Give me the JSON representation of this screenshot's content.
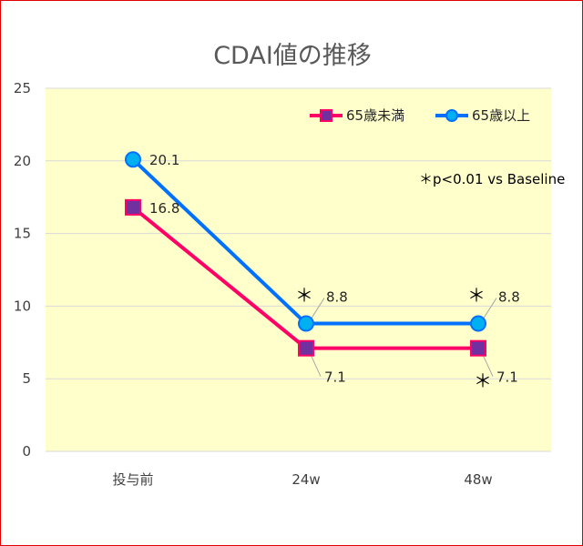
{
  "chart_data": {
    "type": "line",
    "title": "CDAI値の推移",
    "categories": [
      "投与前",
      "24w",
      "48w"
    ],
    "ylim": [
      0,
      25
    ],
    "yticks": [
      0,
      5,
      10,
      15,
      20,
      25
    ],
    "grid": true,
    "legend_position": "top-right",
    "series": [
      {
        "name": "65歳未満",
        "values": [
          16.8,
          7.1,
          7.1
        ],
        "color": "#ff0066",
        "marker": "square",
        "marker_color": "#7030a0"
      },
      {
        "name": "65歳以上",
        "values": [
          20.1,
          8.8,
          8.8
        ],
        "color": "#0070ff",
        "marker": "circle",
        "marker_color": "#00b0f0"
      }
    ],
    "data_labels": {
      "65歳未満": [
        "16.8",
        "7.1",
        "7.1"
      ],
      "65歳以上": [
        "20.1",
        "8.8",
        "8.8"
      ]
    },
    "significance_marker": "＊",
    "annotation": "＊p<0.01 vs Baseline",
    "plot_background": "#ffffcc"
  }
}
